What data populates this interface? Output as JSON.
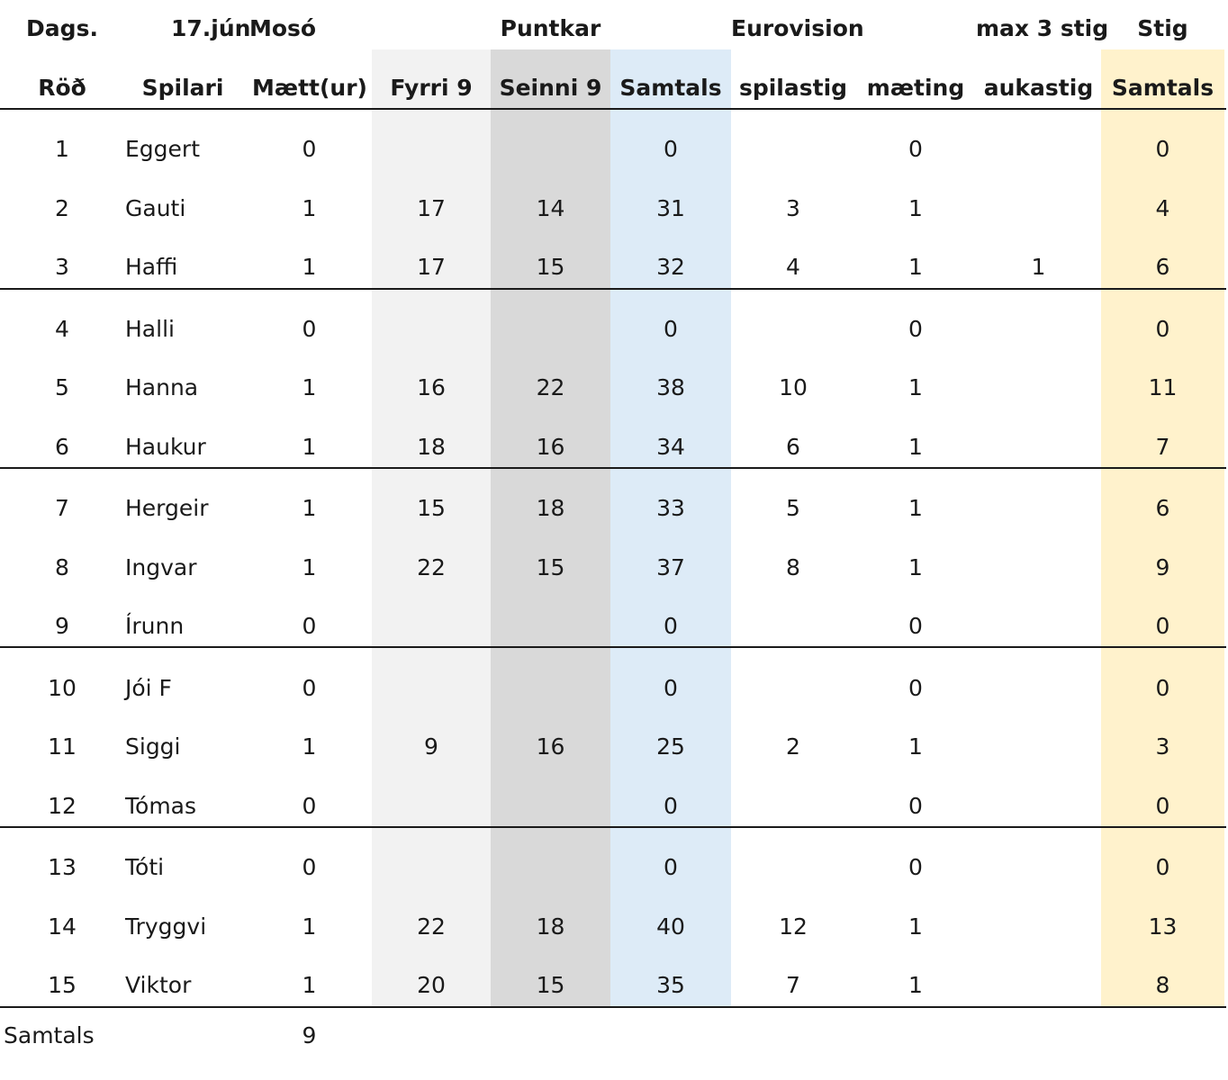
{
  "header_top": {
    "dags_label": "Dags.",
    "date": "17.jún",
    "location": "Mosó",
    "puntkar": "Puntkar",
    "eurovision": "Eurovision",
    "max_stig": "max 3 stig",
    "stig": "Stig"
  },
  "columns": {
    "rod": "Röð",
    "spilari": "Spilari",
    "matt": "Mætt(ur)",
    "fyrri9": "Fyrri 9",
    "seinni9": "Seinni 9",
    "samtals": "Samtals",
    "spilastig": "spilastig",
    "maeting": "mæting",
    "aukastig": "aukastig",
    "stig_samtals": "Samtals"
  },
  "rows": [
    {
      "rod": "1",
      "name": "Eggert",
      "matt": "0",
      "f9": "",
      "s9": "",
      "sam": "0",
      "spil": "",
      "maet": "0",
      "auka": "",
      "stig": "0"
    },
    {
      "rod": "2",
      "name": "Gauti",
      "matt": "1",
      "f9": "17",
      "s9": "14",
      "sam": "31",
      "spil": "3",
      "maet": "1",
      "auka": "",
      "stig": "4"
    },
    {
      "rod": "3",
      "name": "Haffi",
      "matt": "1",
      "f9": "17",
      "s9": "15",
      "sam": "32",
      "spil": "4",
      "maet": "1",
      "auka": "1",
      "stig": "6"
    },
    {
      "rod": "4",
      "name": "Halli",
      "matt": "0",
      "f9": "",
      "s9": "",
      "sam": "0",
      "spil": "",
      "maet": "0",
      "auka": "",
      "stig": "0"
    },
    {
      "rod": "5",
      "name": "Hanna",
      "matt": "1",
      "f9": "16",
      "s9": "22",
      "sam": "38",
      "spil": "10",
      "maet": "1",
      "auka": "",
      "stig": "11"
    },
    {
      "rod": "6",
      "name": "Haukur",
      "matt": "1",
      "f9": "18",
      "s9": "16",
      "sam": "34",
      "spil": "6",
      "maet": "1",
      "auka": "",
      "stig": "7"
    },
    {
      "rod": "7",
      "name": "Hergeir",
      "matt": "1",
      "f9": "15",
      "s9": "18",
      "sam": "33",
      "spil": "5",
      "maet": "1",
      "auka": "",
      "stig": "6"
    },
    {
      "rod": "8",
      "name": "Ingvar",
      "matt": "1",
      "f9": "22",
      "s9": "15",
      "sam": "37",
      "spil": "8",
      "maet": "1",
      "auka": "",
      "stig": "9"
    },
    {
      "rod": "9",
      "name": "Írunn",
      "matt": "0",
      "f9": "",
      "s9": "",
      "sam": "0",
      "spil": "",
      "maet": "0",
      "auka": "",
      "stig": "0"
    },
    {
      "rod": "10",
      "name": "Jói F",
      "matt": "0",
      "f9": "",
      "s9": "",
      "sam": "0",
      "spil": "",
      "maet": "0",
      "auka": "",
      "stig": "0"
    },
    {
      "rod": "11",
      "name": "Siggi",
      "matt": "1",
      "f9": "9",
      "s9": "16",
      "sam": "25",
      "spil": "2",
      "maet": "1",
      "auka": "",
      "stig": "3"
    },
    {
      "rod": "12",
      "name": "Tómas",
      "matt": "0",
      "f9": "",
      "s9": "",
      "sam": "0",
      "spil": "",
      "maet": "0",
      "auka": "",
      "stig": "0"
    },
    {
      "rod": "13",
      "name": "Tóti",
      "matt": "0",
      "f9": "",
      "s9": "",
      "sam": "0",
      "spil": "",
      "maet": "0",
      "auka": "",
      "stig": "0"
    },
    {
      "rod": "14",
      "name": "Tryggvi",
      "matt": "1",
      "f9": "22",
      "s9": "18",
      "sam": "40",
      "spil": "12",
      "maet": "1",
      "auka": "",
      "stig": "13"
    },
    {
      "rod": "15",
      "name": "Viktor",
      "matt": "1",
      "f9": "20",
      "s9": "15",
      "sam": "35",
      "spil": "7",
      "maet": "1",
      "auka": "",
      "stig": "8"
    }
  ],
  "footer": {
    "label": "Samtals",
    "matt_total": "9"
  },
  "colors": {
    "fyrri9_fill": "#f2f2f2",
    "seinni9_fill": "#d9d9d9",
    "samtals_fill": "#ddebf7",
    "stig_fill": "#fff2cc"
  }
}
